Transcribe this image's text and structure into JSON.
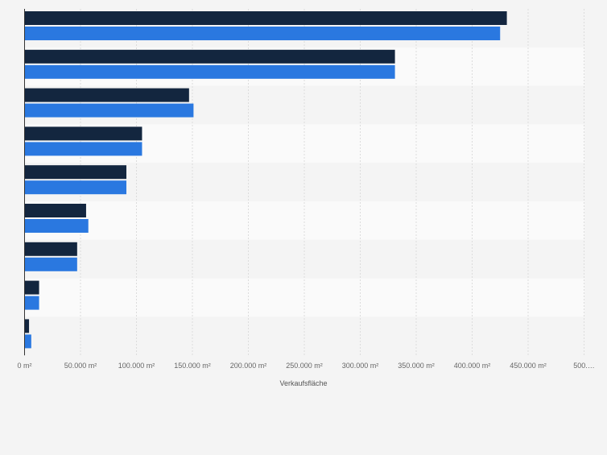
{
  "chart_data": {
    "type": "bar",
    "orientation": "horizontal",
    "categories": [
      "",
      "",
      "",
      "",
      "",
      "",
      "",
      "",
      ""
    ],
    "series": [
      {
        "color": "#13263f",
        "values": [
          431000,
          331000,
          147000,
          105000,
          91000,
          55000,
          47000,
          13000,
          4000
        ]
      },
      {
        "color": "#2a78e0",
        "values": [
          425000,
          331000,
          151000,
          105000,
          91000,
          57000,
          47000,
          13000,
          6000
        ]
      }
    ],
    "xlabel": "Verkaufsfläche",
    "ylabel": "",
    "xlim": [
      0,
      500000
    ],
    "x_ticks": [
      0,
      50000,
      100000,
      150000,
      200000,
      250000,
      300000,
      350000,
      400000,
      450000,
      500000
    ],
    "x_tick_labels": [
      "0 m²",
      "50.000 m²",
      "100.000 m²",
      "150.000 m²",
      "200.000 m²",
      "250.000 m²",
      "300.000 m²",
      "350.000 m²",
      "400.000 m²",
      "450.000 m²",
      "500.…"
    ],
    "grid": true,
    "legend": "none"
  }
}
